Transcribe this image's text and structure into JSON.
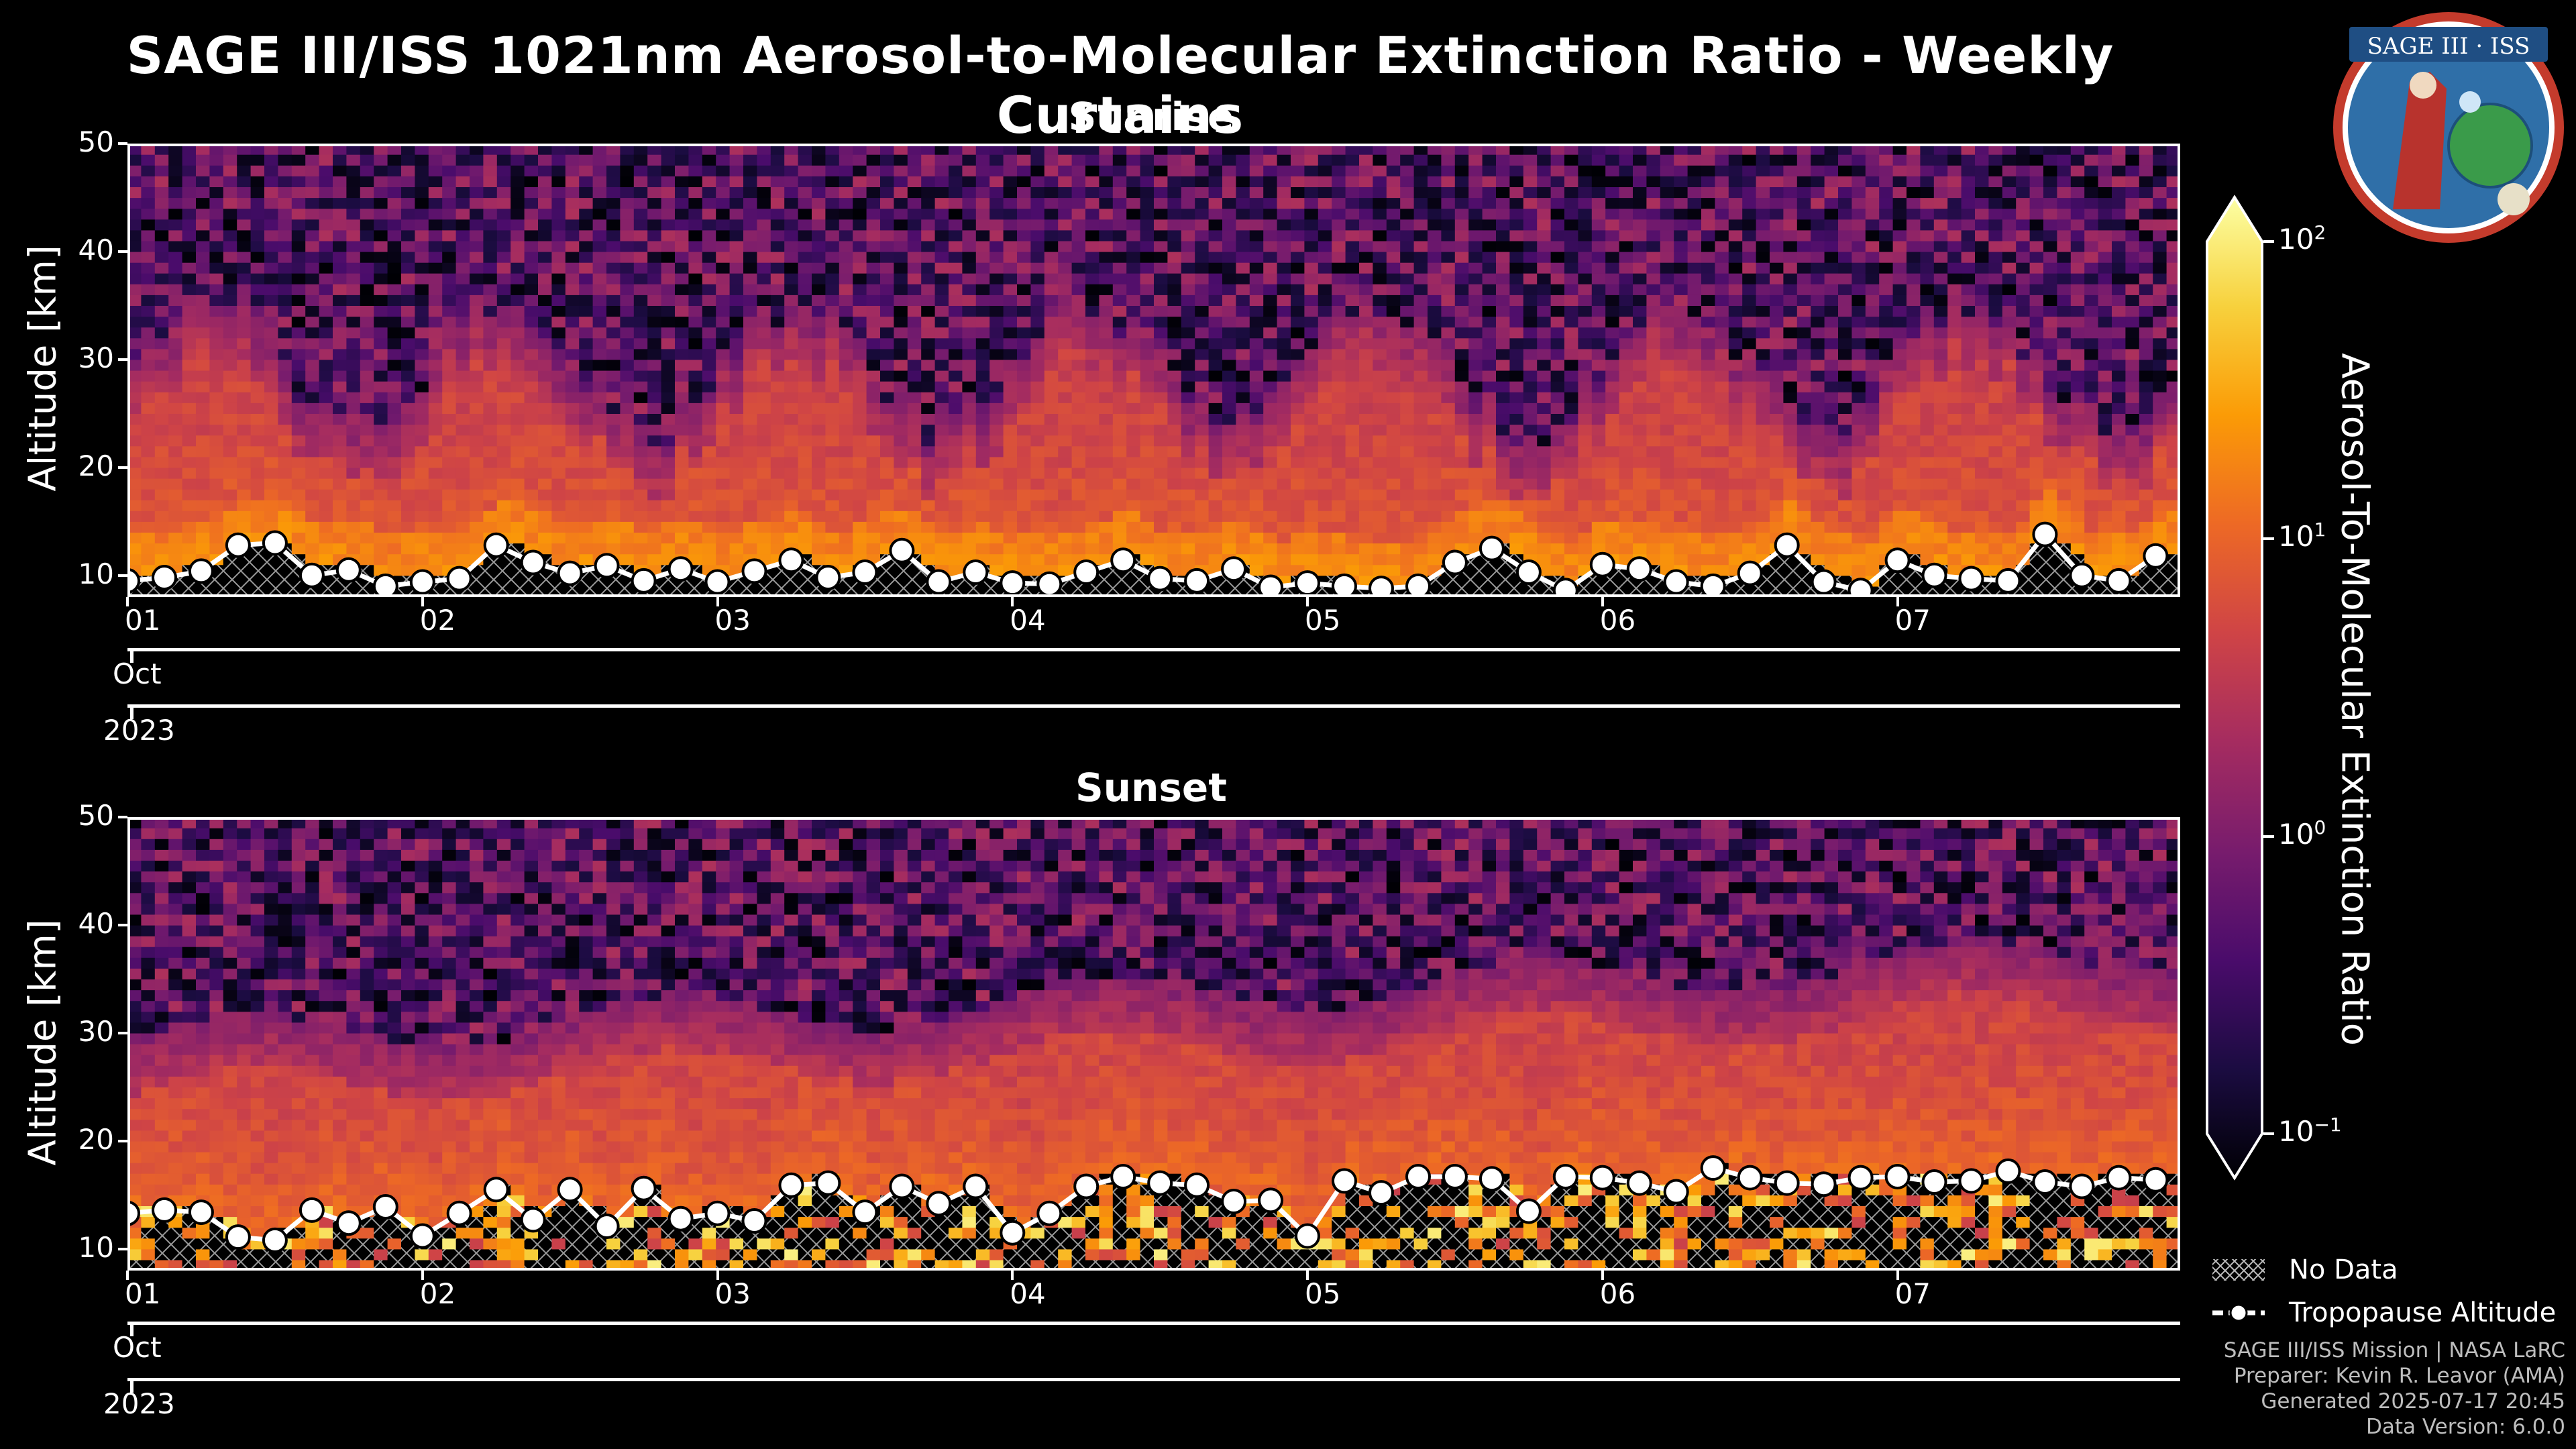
{
  "title": "SAGE III/ISS 1021nm Aerosol-to-Molecular Extinction Ratio - Weekly Curtains",
  "logo_text": "SAGE III · ISS",
  "panels": [
    {
      "title": "Sunrise",
      "ylabel": "Altitude [km]",
      "month": "Oct",
      "year": "2023"
    },
    {
      "title": "Sunset",
      "ylabel": "Altitude [km]",
      "month": "Oct",
      "year": "2023"
    }
  ],
  "colorbar": {
    "label": "Aerosol-To-Molecular Extinction Ratio",
    "ticks": [
      {
        "base": "10",
        "exp": "2",
        "value": 100
      },
      {
        "base": "10",
        "exp": "1",
        "value": 10
      },
      {
        "base": "10",
        "exp": "0",
        "value": 1
      },
      {
        "base": "10",
        "exp": "−1",
        "value": 0.1
      }
    ],
    "colormap": "inferno",
    "colors": [
      "#000004",
      "#1b0c41",
      "#4a0c6b",
      "#781c6d",
      "#a52c60",
      "#cf4446",
      "#ed6925",
      "#fb9b06",
      "#f7d13d",
      "#fcffa4"
    ]
  },
  "legend": {
    "no_data": "No Data",
    "tropopause": "Tropopause Altitude"
  },
  "credits": {
    "line1": "SAGE III/ISS Mission | NASA LaRC",
    "line2": "Preparer: Kevin R. Leavor (AMA)",
    "line3": "Generated 2025-07-17 20:45",
    "line4": "Data Version: 6.0.0"
  },
  "chart_data": [
    {
      "type": "heatmap",
      "title": "Sunrise",
      "xlabel": "",
      "ylabel": "Altitude [km]",
      "x_ticks": [
        "01",
        "02",
        "03",
        "04",
        "05",
        "06",
        "07"
      ],
      "xlim": [
        "2023-10-01",
        "2023-10-07T23:00"
      ],
      "ylim": [
        8,
        50
      ],
      "y_ticks": [
        10,
        20,
        30,
        40,
        50
      ],
      "color_scale": "log",
      "clim": [
        0.1,
        100
      ],
      "tropopause": {
        "times": [
          "2023-10-01T00:00",
          "2023-10-01T03:00",
          "2023-10-01T06:00",
          "2023-10-01T09:00",
          "2023-10-01T12:00",
          "2023-10-01T15:00",
          "2023-10-01T18:00",
          "2023-10-01T21:00",
          "2023-10-02T00:00",
          "2023-10-02T03:00",
          "2023-10-02T06:00",
          "2023-10-02T09:00",
          "2023-10-02T12:00",
          "2023-10-02T15:00",
          "2023-10-02T18:00",
          "2023-10-02T21:00",
          "2023-10-03T00:00",
          "2023-10-03T03:00",
          "2023-10-03T06:00",
          "2023-10-03T09:00",
          "2023-10-03T12:00",
          "2023-10-03T15:00",
          "2023-10-03T18:00",
          "2023-10-03T21:00",
          "2023-10-04T00:00",
          "2023-10-04T03:00",
          "2023-10-04T06:00",
          "2023-10-04T09:00",
          "2023-10-04T12:00",
          "2023-10-04T15:00",
          "2023-10-04T18:00",
          "2023-10-04T21:00",
          "2023-10-05T00:00",
          "2023-10-05T03:00",
          "2023-10-05T06:00",
          "2023-10-05T09:00",
          "2023-10-05T12:00",
          "2023-10-05T15:00",
          "2023-10-05T18:00",
          "2023-10-05T21:00",
          "2023-10-06T00:00",
          "2023-10-06T03:00",
          "2023-10-06T06:00",
          "2023-10-06T09:00",
          "2023-10-06T12:00",
          "2023-10-06T15:00",
          "2023-10-06T18:00",
          "2023-10-06T21:00",
          "2023-10-07T00:00",
          "2023-10-07T03:00",
          "2023-10-07T06:00",
          "2023-10-07T09:00",
          "2023-10-07T12:00",
          "2023-10-07T15:00",
          "2023-10-07T18:00",
          "2023-10-07T21:00"
        ],
        "altitudes_km": [
          9.5,
          9.8,
          10.4,
          12.8,
          13.0,
          10.0,
          10.5,
          9.0,
          9.4,
          9.7,
          12.8,
          11.2,
          10.2,
          10.9,
          9.5,
          10.6,
          9.4,
          10.4,
          11.4,
          9.8,
          10.3,
          12.3,
          9.4,
          10.3,
          9.3,
          9.2,
          10.3,
          11.4,
          9.7,
          9.5,
          10.6,
          8.9,
          9.3,
          9.0,
          8.8,
          9.0,
          11.2,
          12.5,
          10.3,
          8.6,
          11.0,
          10.6,
          9.4,
          9.0,
          10.2,
          12.8,
          9.4,
          8.6,
          11.4,
          10.0,
          9.7,
          9.5,
          13.8,
          10.0,
          9.5,
          11.8
        ]
      },
      "no_data_below": "tropopause"
    },
    {
      "type": "heatmap",
      "title": "Sunset",
      "xlabel": "",
      "ylabel": "Altitude [km]",
      "x_ticks": [
        "01",
        "02",
        "03",
        "04",
        "05",
        "06",
        "07"
      ],
      "xlim": [
        "2023-10-01",
        "2023-10-07T23:00"
      ],
      "ylim": [
        8,
        50
      ],
      "y_ticks": [
        10,
        20,
        30,
        40,
        50
      ],
      "color_scale": "log",
      "clim": [
        0.1,
        100
      ],
      "tropopause": {
        "times": [
          "2023-10-01T00:00",
          "2023-10-01T03:00",
          "2023-10-01T06:00",
          "2023-10-01T09:00",
          "2023-10-01T12:00",
          "2023-10-01T15:00",
          "2023-10-01T18:00",
          "2023-10-01T21:00",
          "2023-10-02T00:00",
          "2023-10-02T03:00",
          "2023-10-02T06:00",
          "2023-10-02T09:00",
          "2023-10-02T12:00",
          "2023-10-02T15:00",
          "2023-10-02T18:00",
          "2023-10-02T21:00",
          "2023-10-03T00:00",
          "2023-10-03T03:00",
          "2023-10-03T06:00",
          "2023-10-03T09:00",
          "2023-10-03T12:00",
          "2023-10-03T15:00",
          "2023-10-03T18:00",
          "2023-10-03T21:00",
          "2023-10-04T00:00",
          "2023-10-04T03:00",
          "2023-10-04T06:00",
          "2023-10-04T09:00",
          "2023-10-04T12:00",
          "2023-10-04T15:00",
          "2023-10-04T18:00",
          "2023-10-04T21:00",
          "2023-10-05T00:00",
          "2023-10-05T03:00",
          "2023-10-05T06:00",
          "2023-10-05T09:00",
          "2023-10-05T12:00",
          "2023-10-05T15:00",
          "2023-10-05T18:00",
          "2023-10-05T21:00",
          "2023-10-06T00:00",
          "2023-10-06T03:00",
          "2023-10-06T06:00",
          "2023-10-06T09:00",
          "2023-10-06T12:00",
          "2023-10-06T15:00",
          "2023-10-06T18:00",
          "2023-10-06T21:00",
          "2023-10-07T00:00",
          "2023-10-07T03:00",
          "2023-10-07T06:00",
          "2023-10-07T09:00",
          "2023-10-07T12:00",
          "2023-10-07T15:00",
          "2023-10-07T18:00",
          "2023-10-07T21:00"
        ],
        "altitudes_km": [
          13.3,
          13.6,
          13.4,
          11.1,
          10.8,
          13.6,
          12.4,
          13.9,
          11.2,
          13.3,
          15.5,
          12.7,
          15.5,
          12.1,
          15.6,
          12.8,
          13.3,
          12.6,
          15.9,
          16.1,
          13.4,
          15.8,
          14.2,
          15.8,
          11.5,
          13.3,
          15.8,
          16.7,
          16.1,
          15.9,
          14.4,
          14.5,
          11.2,
          16.3,
          15.2,
          16.7,
          16.7,
          16.5,
          13.5,
          16.7,
          16.6,
          16.1,
          15.3,
          17.5,
          16.6,
          16.1,
          16.0,
          16.6,
          16.7,
          16.2,
          16.3,
          17.2,
          16.2,
          15.8,
          16.6,
          16.4
        ]
      },
      "no_data_below": "tropopause"
    }
  ]
}
